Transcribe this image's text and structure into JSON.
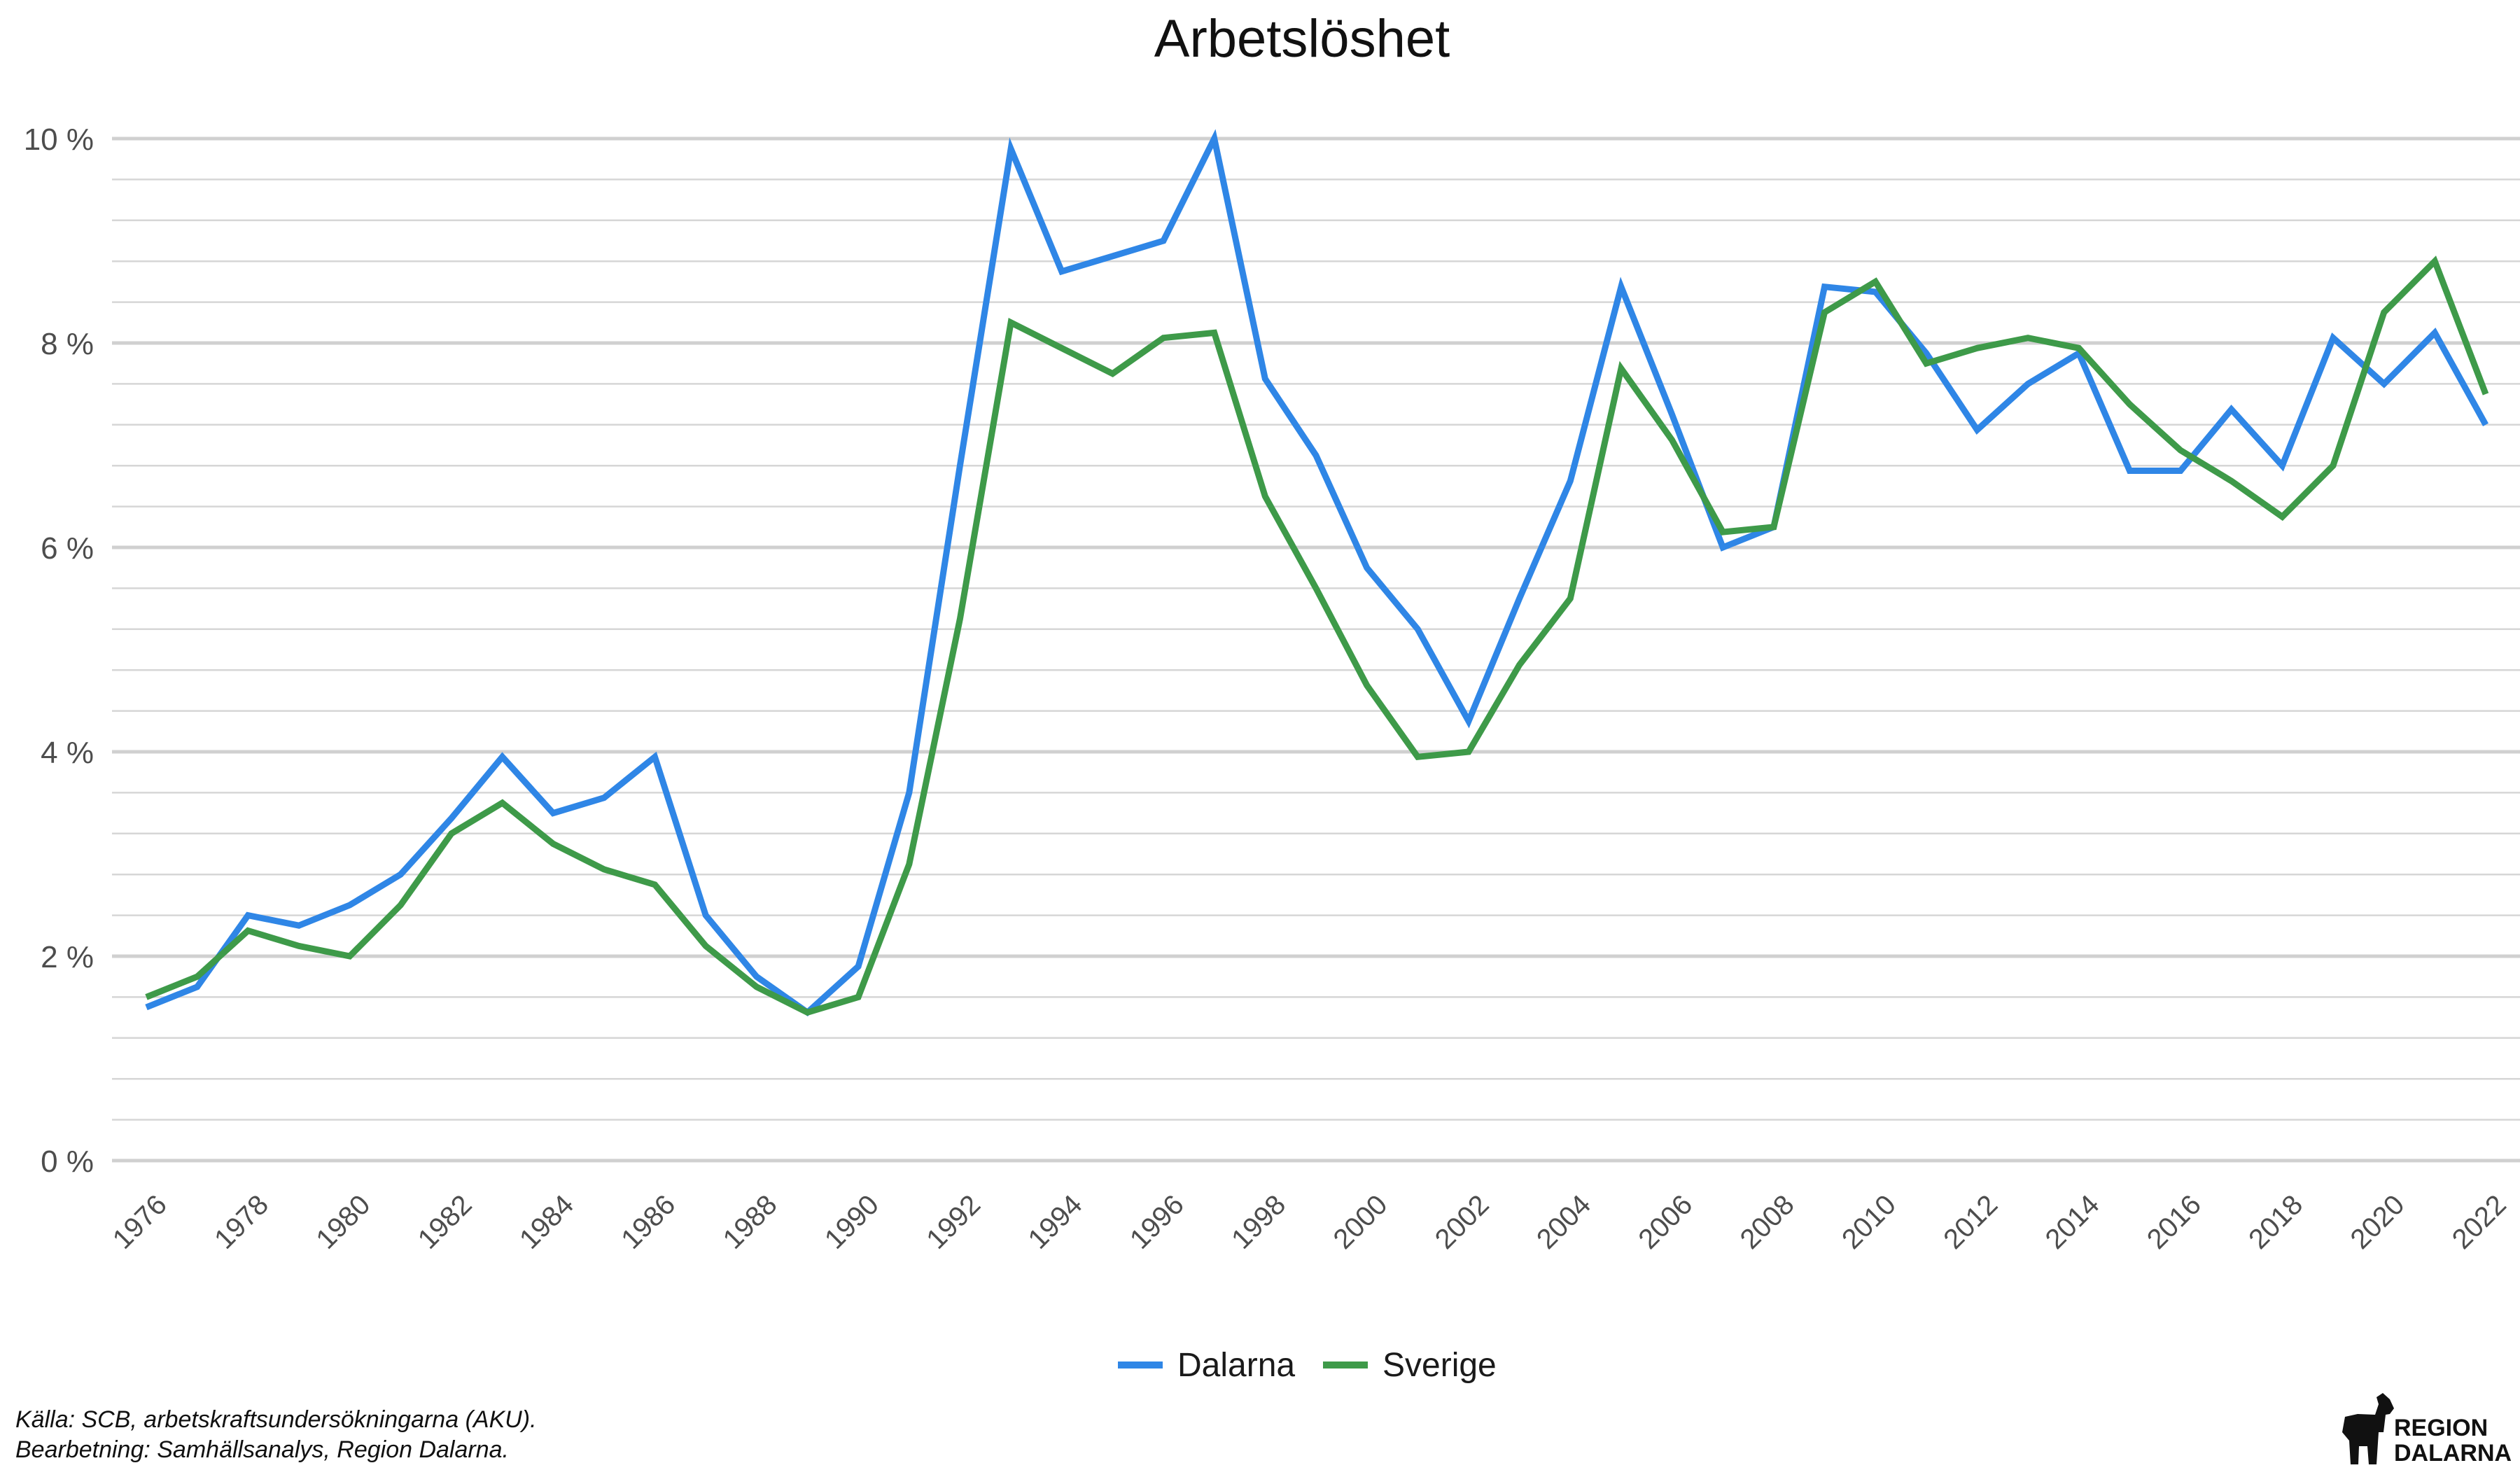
{
  "colors": {
    "dalarna": "#2f86e6",
    "sverige": "#3e9a49"
  },
  "chart_data": {
    "type": "line",
    "title": "Arbetslöshet",
    "xlabel": "",
    "ylabel": "",
    "ylim": [
      0,
      10
    ],
    "xlim": [
      1976,
      2022
    ],
    "grid": true,
    "legend_position": "bottom",
    "y_ticks": [
      {
        "value": 0,
        "label": "0 %"
      },
      {
        "value": 2,
        "label": "2 %"
      },
      {
        "value": 4,
        "label": "4 %"
      },
      {
        "value": 6,
        "label": "6 %"
      },
      {
        "value": 8,
        "label": "8 %"
      },
      {
        "value": 10,
        "label": "10 %"
      }
    ],
    "x_ticks": [
      "1976",
      "1978",
      "1980",
      "1982",
      "1984",
      "1986",
      "1988",
      "1990",
      "1992",
      "1994",
      "1996",
      "1998",
      "2000",
      "2002",
      "2004",
      "2006",
      "2008",
      "2010",
      "2012",
      "2014",
      "2016",
      "2018",
      "2020",
      "2022"
    ],
    "x": [
      1976,
      1977,
      1978,
      1979,
      1980,
      1981,
      1982,
      1983,
      1984,
      1985,
      1986,
      1987,
      1988,
      1989,
      1990,
      1991,
      1992,
      1993,
      1994,
      1995,
      1996,
      1997,
      1998,
      1999,
      2000,
      2001,
      2002,
      2003,
      2004,
      2005,
      2006,
      2007,
      2008,
      2009,
      2010,
      2011,
      2012,
      2013,
      2014,
      2015,
      2016,
      2017,
      2018,
      2019,
      2020,
      2021,
      2022
    ],
    "series": [
      {
        "name": "Dalarna",
        "values": [
          1.5,
          1.7,
          2.4,
          2.3,
          2.5,
          2.8,
          3.35,
          3.95,
          3.4,
          3.55,
          3.95,
          2.4,
          1.8,
          1.45,
          1.9,
          3.6,
          6.8,
          9.9,
          8.7,
          8.85,
          9.0,
          10.0,
          7.65,
          6.9,
          5.8,
          5.2,
          4.3,
          5.5,
          6.65,
          8.55,
          7.3,
          6.0,
          6.2,
          8.55,
          8.5,
          7.9,
          7.15,
          7.6,
          7.9,
          6.75,
          6.75,
          7.35,
          6.8,
          8.05,
          7.6,
          8.1,
          7.2
        ]
      },
      {
        "name": "Sverige",
        "values": [
          1.6,
          1.8,
          2.25,
          2.1,
          2.0,
          2.5,
          3.2,
          3.5,
          3.1,
          2.85,
          2.7,
          2.1,
          1.7,
          1.45,
          1.6,
          2.9,
          5.3,
          8.2,
          7.95,
          7.7,
          8.05,
          8.1,
          6.5,
          5.6,
          4.65,
          3.95,
          4.0,
          4.85,
          5.5,
          7.75,
          7.05,
          6.15,
          6.2,
          8.3,
          8.6,
          7.8,
          7.95,
          8.05,
          7.95,
          7.4,
          6.95,
          6.65,
          6.3,
          6.8,
          8.3,
          8.8,
          7.5
        ]
      }
    ]
  },
  "footer": {
    "source": "Källa: SCB, arbetskraftsundersökningarna (AKU).",
    "processing": "Bearbetning: Samhällsanalys, Region Dalarna."
  },
  "logo": {
    "icon": "dala-horse-icon",
    "line1": "REGION",
    "line2": "DALARNA"
  }
}
